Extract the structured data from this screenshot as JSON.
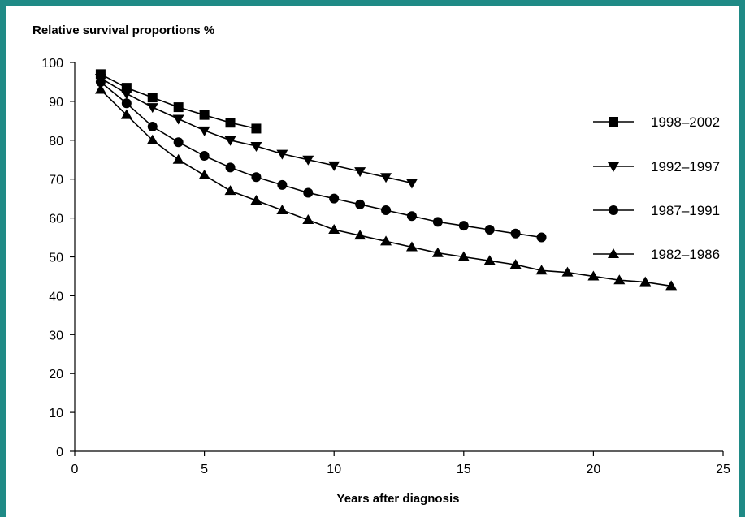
{
  "chart_data": {
    "type": "line",
    "title": "",
    "ylabel": "Relative survival proportions %",
    "xlabel": "Years after diagnosis",
    "xlim": [
      0,
      25
    ],
    "ylim": [
      0,
      100
    ],
    "x_ticks": [
      "0",
      "5",
      "10",
      "15",
      "20",
      "25"
    ],
    "y_ticks": [
      "0",
      "10",
      "20",
      "30",
      "40",
      "50",
      "60",
      "70",
      "80",
      "90",
      "100"
    ],
    "grid": false,
    "legend_position": "right",
    "series": [
      {
        "name": "1998–2002",
        "marker": "square",
        "x": [
          1,
          2,
          3,
          4,
          5,
          6,
          7
        ],
        "y": [
          97,
          93.5,
          91,
          88.5,
          86.5,
          84.5,
          83
        ]
      },
      {
        "name": "1992–1997",
        "marker": "triangle-down",
        "x": [
          1,
          2,
          3,
          4,
          5,
          6,
          7,
          8,
          9,
          10,
          11,
          12,
          13
        ],
        "y": [
          96,
          92,
          88.5,
          85.5,
          82.5,
          80,
          78.5,
          76.5,
          75,
          73.5,
          72,
          70.5,
          69
        ]
      },
      {
        "name": "1987–1991",
        "marker": "circle",
        "x": [
          1,
          2,
          3,
          4,
          5,
          6,
          7,
          8,
          9,
          10,
          11,
          12,
          13,
          14,
          15,
          16,
          17,
          18
        ],
        "y": [
          95,
          89.5,
          83.5,
          79.5,
          76,
          73,
          70.5,
          68.5,
          66.5,
          65,
          63.5,
          62,
          60.5,
          59,
          58,
          57,
          56,
          55
        ]
      },
      {
        "name": "1982–1986",
        "marker": "triangle-up",
        "x": [
          1,
          2,
          3,
          4,
          5,
          6,
          7,
          8,
          9,
          10,
          11,
          12,
          13,
          14,
          15,
          16,
          17,
          18,
          19,
          20,
          21,
          22,
          23
        ],
        "y": [
          93,
          86.5,
          80,
          75,
          71,
          67,
          64.5,
          62,
          59.5,
          57,
          55.5,
          54,
          52.5,
          51,
          50,
          49,
          48,
          46.5,
          46,
          45,
          44,
          43.5,
          42.5
        ]
      }
    ]
  }
}
